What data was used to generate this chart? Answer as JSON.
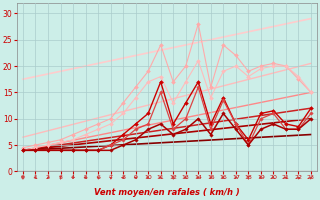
{
  "title": "",
  "xlabel": "Vent moyen/en rafales ( km/h )",
  "background_color": "#cceee8",
  "grid_color": "#aacccc",
  "xlim": [
    -0.5,
    23.5
  ],
  "ylim": [
    0,
    32
  ],
  "yticks": [
    0,
    5,
    10,
    15,
    20,
    25,
    30
  ],
  "xticks": [
    0,
    1,
    2,
    3,
    4,
    5,
    6,
    7,
    8,
    9,
    10,
    11,
    12,
    13,
    14,
    15,
    16,
    17,
    18,
    19,
    20,
    21,
    22,
    23
  ],
  "series": [
    {
      "label": "light_pink_zigzag",
      "x": [
        0,
        1,
        2,
        3,
        4,
        5,
        6,
        7,
        8,
        9,
        10,
        11,
        12,
        13,
        14,
        15,
        16,
        17,
        18,
        19,
        20,
        21,
        22,
        23
      ],
      "y": [
        4.5,
        5,
        5.5,
        6,
        7,
        8,
        9,
        10,
        13,
        16,
        19,
        24,
        17,
        20,
        28,
        16,
        24,
        22,
        19,
        20,
        20.5,
        20,
        17.5,
        15
      ],
      "color": "#ffaaaa",
      "lw": 0.8,
      "marker": "D",
      "ms": 2.0,
      "zorder": 3
    },
    {
      "label": "medium_pink_curve",
      "x": [
        0,
        1,
        2,
        3,
        4,
        5,
        6,
        7,
        8,
        9,
        10,
        11,
        12,
        13,
        14,
        15,
        16,
        17,
        18,
        19,
        20,
        21,
        22,
        23
      ],
      "y": [
        4,
        4.5,
        5,
        5.5,
        6,
        7,
        8,
        9,
        11,
        14,
        17,
        18,
        13,
        17,
        21,
        14,
        19,
        20,
        18,
        19.5,
        20,
        20,
        18,
        15
      ],
      "color": "#ffbbbb",
      "lw": 0.8,
      "marker": "D",
      "ms": 2.0,
      "zorder": 3
    },
    {
      "label": "dark_red_spiky",
      "x": [
        0,
        1,
        2,
        3,
        4,
        5,
        6,
        7,
        8,
        9,
        10,
        11,
        12,
        13,
        14,
        15,
        16,
        17,
        18,
        19,
        20,
        21,
        22,
        23
      ],
      "y": [
        4,
        4,
        4,
        4,
        4,
        4,
        4,
        5,
        7,
        9,
        11,
        17,
        9,
        13,
        17,
        9,
        14,
        9,
        6,
        11,
        11.5,
        9,
        8.5,
        12
      ],
      "color": "#cc0000",
      "lw": 1.0,
      "marker": "D",
      "ms": 2.0,
      "zorder": 4
    },
    {
      "label": "red_medium_spiky",
      "x": [
        0,
        1,
        2,
        3,
        4,
        5,
        6,
        7,
        8,
        9,
        10,
        11,
        12,
        13,
        14,
        15,
        16,
        17,
        18,
        19,
        20,
        21,
        22,
        23
      ],
      "y": [
        4,
        4,
        4,
        4,
        4,
        4,
        4,
        5,
        6,
        8,
        9,
        15,
        8,
        10,
        16,
        8,
        13.5,
        9,
        5,
        10,
        11,
        8,
        8,
        11
      ],
      "color": "#dd4444",
      "lw": 0.9,
      "marker": "D",
      "ms": 1.8,
      "zorder": 4
    },
    {
      "label": "dark_red_lower",
      "x": [
        0,
        1,
        2,
        3,
        4,
        5,
        6,
        7,
        8,
        9,
        10,
        11,
        12,
        13,
        14,
        15,
        16,
        17,
        18,
        19,
        20,
        21,
        22,
        23
      ],
      "y": [
        4,
        4,
        4,
        4,
        4,
        4,
        4,
        4,
        5,
        6,
        8,
        9,
        7,
        8,
        10,
        7,
        11,
        8,
        5,
        8,
        9,
        8,
        8,
        10
      ],
      "color": "#aa0000",
      "lw": 1.1,
      "marker": "D",
      "ms": 1.8,
      "zorder": 4
    },
    {
      "label": "envelope_top",
      "x": [
        0,
        23
      ],
      "y": [
        17.5,
        29
      ],
      "color": "#ffcccc",
      "lw": 1.2,
      "marker": null,
      "ms": 0,
      "zorder": 2
    },
    {
      "label": "envelope_mid_upper",
      "x": [
        0,
        23
      ],
      "y": [
        6.5,
        20.5
      ],
      "color": "#ffbbbb",
      "lw": 1.0,
      "marker": null,
      "ms": 0,
      "zorder": 2
    },
    {
      "label": "envelope_mid",
      "x": [
        0,
        23
      ],
      "y": [
        4,
        15
      ],
      "color": "#ff8888",
      "lw": 1.0,
      "marker": null,
      "ms": 0,
      "zorder": 2
    },
    {
      "label": "envelope_lower1",
      "x": [
        0,
        23
      ],
      "y": [
        4,
        12
      ],
      "color": "#cc2222",
      "lw": 1.1,
      "marker": null,
      "ms": 0,
      "zorder": 2
    },
    {
      "label": "envelope_lower2",
      "x": [
        0,
        23
      ],
      "y": [
        4,
        10
      ],
      "color": "#aa0000",
      "lw": 1.2,
      "marker": null,
      "ms": 0,
      "zorder": 2
    },
    {
      "label": "envelope_base",
      "x": [
        0,
        23
      ],
      "y": [
        4,
        7
      ],
      "color": "#880000",
      "lw": 1.2,
      "marker": null,
      "ms": 0,
      "zorder": 2
    }
  ],
  "wind_arrow_angles": [
    0,
    45,
    315,
    0,
    330,
    270,
    225,
    225,
    270,
    270,
    45,
    45,
    0,
    45,
    45,
    315,
    45,
    315,
    0,
    45,
    45,
    270,
    225,
    135
  ]
}
